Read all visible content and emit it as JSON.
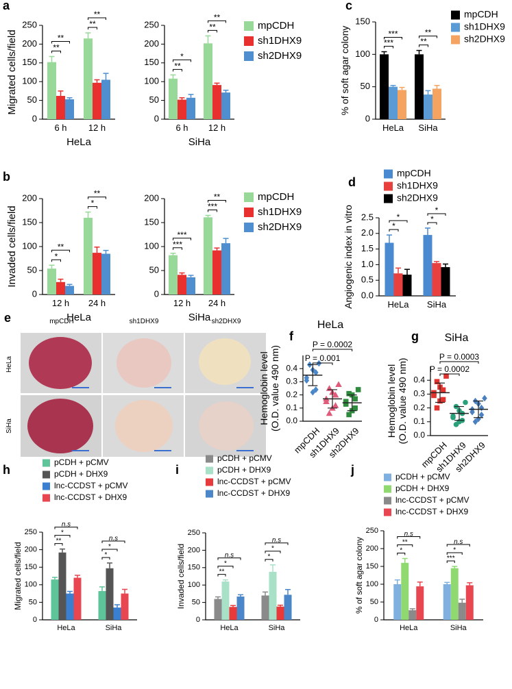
{
  "chart_data": [
    {
      "type": "bar",
      "panel": "a",
      "ylabel": "Migrated cells/field",
      "xlabel": "HeLa",
      "categories": [
        "6 h",
        "12 h"
      ],
      "ylim": [
        0,
        250
      ],
      "yticks": [
        0,
        50,
        100,
        150,
        200,
        250
      ],
      "series": [
        {
          "color": "#98d898",
          "values": [
            152,
            215
          ],
          "errors": [
            15,
            15
          ]
        },
        {
          "color": "#e8312f",
          "values": [
            62,
            97
          ],
          "errors": [
            13,
            8
          ]
        },
        {
          "color": "#4f8fd0",
          "values": [
            53,
            105
          ],
          "errors": [
            4,
            17
          ]
        }
      ],
      "annotations": [
        "**",
        "**",
        "**",
        "**"
      ]
    },
    {
      "type": "bar",
      "xlabel": "SiHa",
      "categories": [
        "6 h",
        "12 h"
      ],
      "ylim": [
        0,
        250
      ],
      "yticks": [
        0,
        50,
        100,
        150,
        200,
        250
      ],
      "series": [
        {
          "name": "mpCDH",
          "color": "#98d898",
          "values": [
            108,
            202
          ],
          "errors": [
            10,
            20
          ]
        },
        {
          "name": "sh1DHX9",
          "color": "#e8312f",
          "values": [
            52,
            91
          ],
          "errors": [
            5,
            5
          ]
        },
        {
          "name": "sh2DHX9",
          "color": "#4f8fd0",
          "values": [
            57,
            71
          ],
          "errors": [
            9,
            6
          ]
        }
      ],
      "annotations": [
        "**",
        "*",
        "**",
        "**"
      ]
    },
    {
      "type": "bar",
      "panel": "b",
      "ylabel": "Invaded cells/field",
      "xlabel": "HeLa",
      "categories": [
        "12 h",
        "24 h"
      ],
      "ylim": [
        0,
        200
      ],
      "yticks": [
        0,
        50,
        100,
        150,
        200
      ],
      "series": [
        {
          "color": "#98d898",
          "values": [
            54,
            160
          ],
          "errors": [
            7,
            12
          ]
        },
        {
          "color": "#e8312f",
          "values": [
            26,
            87
          ],
          "errors": [
            6,
            12
          ]
        },
        {
          "color": "#4f8fd0",
          "values": [
            18,
            85
          ],
          "errors": [
            3,
            7
          ]
        }
      ],
      "annotations": [
        "*",
        "**",
        "*",
        "**"
      ]
    },
    {
      "type": "bar",
      "xlabel": "SiHa",
      "categories": [
        "12 h",
        "24 h"
      ],
      "ylim": [
        0,
        200
      ],
      "yticks": [
        0,
        50,
        100,
        150,
        200
      ],
      "series": [
        {
          "name": "mpCDH",
          "color": "#98d898",
          "values": [
            82,
            161
          ],
          "errors": [
            4,
            4
          ]
        },
        {
          "name": "sh1DHX9",
          "color": "#e8312f",
          "values": [
            41,
            92
          ],
          "errors": [
            4,
            5
          ]
        },
        {
          "name": "sh2DHX9",
          "color": "#4f8fd0",
          "values": [
            36,
            107
          ],
          "errors": [
            4,
            10
          ]
        }
      ],
      "annotations": [
        "***",
        "***",
        "***",
        "**"
      ]
    },
    {
      "type": "bar",
      "panel": "c",
      "ylabel": "% of soft agar colony",
      "categories": [
        "HeLa",
        "SiHa"
      ],
      "ylim": [
        0,
        150
      ],
      "yticks": [
        0,
        50,
        100,
        150
      ],
      "series": [
        {
          "name": "mpCDH",
          "color": "#000000",
          "values": [
            100,
            100
          ],
          "errors": [
            4,
            6
          ]
        },
        {
          "name": "sh1DHX9",
          "color": "#5b9bd5",
          "values": [
            50,
            38
          ],
          "errors": [
            2,
            6
          ]
        },
        {
          "name": "sh2DHX9",
          "color": "#f4a460",
          "values": [
            45,
            47
          ],
          "errors": [
            4,
            5
          ]
        }
      ],
      "annotations": [
        "***",
        "***",
        "**",
        "**"
      ]
    },
    {
      "type": "bar",
      "panel": "d",
      "ylabel": "Angiogenic index in vitro",
      "categories": [
        "HeLa",
        "SiHa"
      ],
      "ylim": [
        0,
        2.5
      ],
      "yticks": [
        {
          "value": 0,
          "label": "0.0"
        },
        0.5,
        {
          "value": 1,
          "label": "1.0"
        },
        1.5,
        {
          "value": 2,
          "label": "2.0"
        },
        2.5
      ],
      "series": [
        {
          "name": "mpCDH",
          "color": "#4a8ad0",
          "values": [
            1.7,
            1.95
          ],
          "errors": [
            0.25,
            0.22
          ]
        },
        {
          "name": "sh1DHX9",
          "color": "#e8403f",
          "values": [
            0.72,
            1.05
          ],
          "errors": [
            0.17,
            0.05
          ]
        },
        {
          "name": "sh2DHX9",
          "color": "#000000",
          "values": [
            0.68,
            0.92
          ],
          "errors": [
            0.17,
            0.1
          ]
        }
      ],
      "annotations": [
        "*",
        "*",
        "*",
        "*"
      ]
    },
    {
      "type": "strip",
      "panel": "f",
      "title": "HeLa",
      "ylabel": [
        "Hemoglobin level",
        "(O.D. value 490 nm)"
      ],
      "categories": [
        "mpCDH",
        "sh1DHX9",
        "sh2DHX9"
      ],
      "ylim": [
        0,
        0.5
      ],
      "yticks": [
        {
          "value": 0,
          "label": "0.0"
        },
        0.1,
        0.2,
        0.3,
        0.4
      ],
      "series": [
        {
          "color": "#4a86c8",
          "marker": "diamond",
          "values": [
            0.44,
            0.43,
            0.39,
            0.37,
            0.33,
            0.31,
            0.24,
            0.22
          ],
          "mean": 0.35,
          "sd": 0.08
        },
        {
          "color": "#e05a7a",
          "marker": "triangle",
          "values": [
            0.28,
            0.25,
            0.22,
            0.2,
            0.17,
            0.15,
            0.12,
            0.1,
            0.06
          ],
          "mean": 0.17,
          "sd": 0.07
        },
        {
          "color": "#2e8b3e",
          "marker": "square",
          "values": [
            0.24,
            0.21,
            0.2,
            0.17,
            0.15,
            0.13,
            0.1,
            0.08,
            0.05
          ],
          "mean": 0.14,
          "sd": 0.06
        }
      ],
      "annotations": [
        "P = 0.001",
        "P = 0.0002"
      ]
    },
    {
      "type": "strip",
      "panel": "g",
      "title": "SiHa",
      "ylabel": [
        "Hemoglobin level",
        "(O.D. value 490 nm)"
      ],
      "categories": [
        "mpCDH",
        "sh1DHX9",
        "sh2DHX9"
      ],
      "ylim": [
        0,
        0.5
      ],
      "yticks": [
        {
          "value": 0,
          "label": "0.0"
        },
        0.1,
        0.2,
        0.3,
        0.4
      ],
      "series": [
        {
          "color": "#e0322e",
          "marker": "square",
          "values": [
            0.43,
            0.39,
            0.35,
            0.33,
            0.31,
            0.29,
            0.26,
            0.25,
            0.2
          ],
          "mean": 0.31,
          "sd": 0.07
        },
        {
          "color": "#2aa07a",
          "marker": "circle",
          "values": [
            0.24,
            0.21,
            0.18,
            0.16,
            0.14,
            0.13,
            0.11,
            0.1,
            0.08
          ],
          "mean": 0.16,
          "sd": 0.05
        },
        {
          "color": "#4a7fc0",
          "marker": "diamond",
          "values": [
            0.27,
            0.25,
            0.23,
            0.2,
            0.19,
            0.17,
            0.15,
            0.12,
            0.1
          ],
          "mean": 0.19,
          "sd": 0.06
        }
      ],
      "annotations": [
        "P = 0.0002",
        "P = 0.0003"
      ]
    },
    {
      "type": "bar",
      "panel": "h",
      "ylabel": "Migrated cells/field",
      "categories": [
        "HeLa",
        "SiHa"
      ],
      "ylim": [
        0,
        250
      ],
      "yticks": [
        0,
        50,
        100,
        150,
        200,
        250
      ],
      "series": [
        {
          "name": "pCDH + pCMV",
          "color": "#5ec49a",
          "values": [
            115,
            82
          ],
          "errors": [
            6,
            12
          ]
        },
        {
          "name": "pCDH + DHX9",
          "color": "#555555",
          "values": [
            192,
            147
          ],
          "errors": [
            10,
            15
          ]
        },
        {
          "name": "lnc-CCDST + pCMV",
          "color": "#3a7fd0",
          "values": [
            75,
            35
          ],
          "errors": [
            6,
            8
          ]
        },
        {
          "name": "lnc-CCDST + DHX9",
          "color": "#e84650",
          "values": [
            120,
            75
          ],
          "errors": [
            7,
            12
          ]
        }
      ],
      "annotations": [
        "**",
        "*",
        "n.s",
        "*",
        "*",
        "n.s"
      ]
    },
    {
      "type": "bar",
      "panel": "i",
      "ylabel": "Invaded cells/field",
      "categories": [
        "HeLa",
        "SiHa"
      ],
      "ylim": [
        0,
        250
      ],
      "yticks": [
        0,
        50,
        100,
        150,
        200,
        250
      ],
      "series": [
        {
          "name": "pCDH + pCMV",
          "color": "#8a8a8a",
          "values": [
            60,
            70
          ],
          "errors": [
            6,
            10
          ]
        },
        {
          "name": "pCDH + DHX9",
          "color": "#a8e0c8",
          "values": [
            110,
            138
          ],
          "errors": [
            5,
            20
          ]
        },
        {
          "name": "lnc-CCDST + pCMV",
          "color": "#e83a3a",
          "values": [
            37,
            38
          ],
          "errors": [
            4,
            4
          ]
        },
        {
          "name": "lnc-CCDST + DHX9",
          "color": "#4a86c8",
          "values": [
            67,
            72
          ],
          "errors": [
            5,
            15
          ]
        }
      ],
      "annotations": [
        "**",
        "*",
        "n.s",
        "*",
        "*",
        "n.s"
      ]
    },
    {
      "type": "bar",
      "panel": "j",
      "ylabel": "% of soft agar colony",
      "categories": [
        "HeLa",
        "SiHa"
      ],
      "ylim": [
        0,
        250
      ],
      "yticks": [
        0,
        50,
        100,
        150,
        200,
        250
      ],
      "series": [
        {
          "name": "pCDH + pCMV",
          "color": "#7fb0e0",
          "values": [
            100,
            100
          ],
          "errors": [
            12,
            5
          ]
        },
        {
          "name": "pCDH + DHX9",
          "color": "#90d870",
          "values": [
            160,
            145
          ],
          "errors": [
            12,
            5
          ]
        },
        {
          "name": "lnc-CCDST + pCMV",
          "color": "#8a8a8a",
          "values": [
            27,
            48
          ],
          "errors": [
            4,
            10
          ]
        },
        {
          "name": "lnc-CCDST + DHX9",
          "color": "#e84650",
          "values": [
            94,
            97
          ],
          "errors": [
            12,
            7
          ]
        }
      ],
      "annotations": [
        "*",
        "**",
        "n.s",
        "***",
        "*",
        "n.s"
      ]
    }
  ],
  "panel_e": {
    "label": "e",
    "columns": [
      "mpCDH",
      "sh1DHX9",
      "sh2DHX9"
    ],
    "rows": [
      "HeLa",
      "SiHa"
    ]
  }
}
